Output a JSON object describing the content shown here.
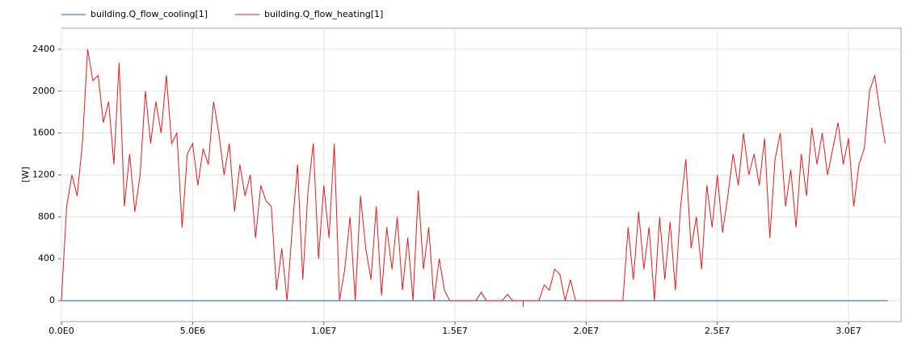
{
  "chart_data": {
    "type": "line",
    "ylabel": "[W]",
    "xlim": [
      0,
      32000000
    ],
    "ylim": [
      -200,
      2600
    ],
    "xticks": [
      {
        "value": 0,
        "label": "0.0E0"
      },
      {
        "value": 5000000,
        "label": "5.0E6"
      },
      {
        "value": 10000000,
        "label": "1.0E7"
      },
      {
        "value": 15000000,
        "label": "1.5E7"
      },
      {
        "value": 20000000,
        "label": "2.0E7"
      },
      {
        "value": 25000000,
        "label": "2.5E7"
      },
      {
        "value": 30000000,
        "label": "3.0E7"
      }
    ],
    "yticks": [
      0,
      400,
      800,
      1200,
      1600,
      2000,
      2400
    ],
    "grid": true,
    "legend": "top-left",
    "series": [
      {
        "name": "building.Q_flow_cooling[1]",
        "color": "#1f5fa8",
        "x": [
          0,
          17600000,
          17600000,
          17600000,
          31500000
        ],
        "values": [
          0,
          0,
          -60,
          0,
          0
        ]
      },
      {
        "name": "building.Q_flow_heating[1]",
        "color": "#e41a1c",
        "x": [
          0,
          200000,
          400000,
          600000,
          800000,
          1000000,
          1200000,
          1400000,
          1600000,
          1800000,
          2000000,
          2200000,
          2400000,
          2600000,
          2800000,
          3000000,
          3200000,
          3400000,
          3600000,
          3800000,
          4000000,
          4200000,
          4400000,
          4600000,
          4800000,
          5000000,
          5200000,
          5400000,
          5600000,
          5800000,
          6000000,
          6200000,
          6400000,
          6600000,
          6800000,
          7000000,
          7200000,
          7400000,
          7600000,
          7800000,
          8000000,
          8200000,
          8400000,
          8600000,
          8800000,
          9000000,
          9200000,
          9400000,
          9600000,
          9800000,
          10000000,
          10200000,
          10400000,
          10600000,
          10800000,
          11000000,
          11200000,
          11400000,
          11600000,
          11800000,
          12000000,
          12200000,
          12400000,
          12600000,
          12800000,
          13000000,
          13200000,
          13400000,
          13600000,
          13800000,
          14000000,
          14200000,
          14400000,
          14600000,
          14800000,
          15000000,
          15200000,
          15400000,
          15600000,
          15800000,
          16000000,
          16200000,
          16400000,
          16600000,
          16800000,
          17000000,
          17200000,
          17400000,
          17600000,
          17800000,
          18000000,
          18200000,
          18400000,
          18600000,
          18800000,
          19000000,
          19200000,
          19400000,
          19600000,
          19800000,
          20000000,
          20200000,
          20400000,
          20600000,
          20800000,
          21000000,
          21200000,
          21400000,
          21600000,
          21800000,
          22000000,
          22200000,
          22400000,
          22600000,
          22800000,
          23000000,
          23200000,
          23400000,
          23600000,
          23800000,
          24000000,
          24200000,
          24400000,
          24600000,
          24800000,
          25000000,
          25200000,
          25400000,
          25600000,
          25800000,
          26000000,
          26200000,
          26400000,
          26600000,
          26800000,
          27000000,
          27200000,
          27400000,
          27600000,
          27800000,
          28000000,
          28200000,
          28400000,
          28600000,
          28800000,
          29000000,
          29200000,
          29400000,
          29600000,
          29800000,
          30000000,
          30200000,
          30400000,
          30600000,
          30800000,
          31000000,
          31200000,
          31400000
        ],
        "values": [
          0,
          900,
          1200,
          1000,
          1500,
          2400,
          2100,
          2150,
          1700,
          1900,
          1300,
          2270,
          900,
          1400,
          850,
          1200,
          2000,
          1500,
          1900,
          1600,
          2150,
          1500,
          1600,
          700,
          1400,
          1500,
          1100,
          1450,
          1300,
          1900,
          1600,
          1200,
          1500,
          850,
          1300,
          1000,
          1200,
          600,
          1100,
          950,
          900,
          100,
          500,
          0,
          700,
          1300,
          200,
          1050,
          1500,
          400,
          1100,
          600,
          1500,
          0,
          300,
          800,
          0,
          1000,
          500,
          200,
          900,
          50,
          700,
          300,
          800,
          100,
          600,
          0,
          1050,
          300,
          700,
          0,
          400,
          100,
          0,
          0,
          0,
          0,
          0,
          0,
          80,
          0,
          0,
          0,
          0,
          60,
          0,
          0,
          0,
          0,
          0,
          0,
          150,
          100,
          300,
          250,
          0,
          200,
          0,
          0,
          0,
          0,
          0,
          0,
          0,
          0,
          0,
          0,
          700,
          200,
          850,
          300,
          700,
          0,
          800,
          200,
          750,
          100,
          900,
          1350,
          500,
          800,
          300,
          1100,
          700,
          1200,
          650,
          1000,
          1400,
          1100,
          1600,
          1200,
          1400,
          1100,
          1550,
          600,
          1350,
          1600,
          900,
          1250,
          700,
          1400,
          1000,
          1650,
          1300,
          1600,
          1200,
          1450,
          1700,
          1300,
          1550,
          900,
          1300,
          1450,
          2000,
          2150,
          1800,
          1500
        ]
      }
    ]
  }
}
